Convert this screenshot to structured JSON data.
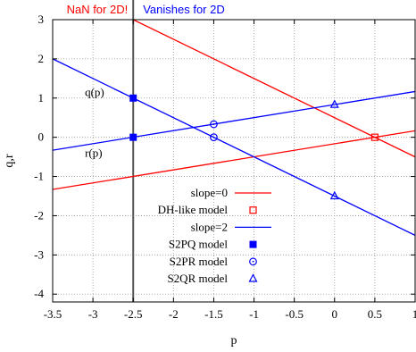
{
  "chart_data": {
    "type": "line",
    "xlabel": "p",
    "ylabel": "q,r",
    "xlim": [
      -3.5,
      1
    ],
    "ylim": [
      -4.2,
      3
    ],
    "x_ticks": [
      -3.5,
      -3,
      -2.5,
      -2,
      -1.5,
      -1,
      -0.5,
      0,
      0.5,
      1
    ],
    "x_tick_labels": [
      "-3.5",
      "-3",
      "-2.5",
      "-2",
      "-1.5",
      "-1",
      "-0.5",
      "0",
      "0.5",
      "1"
    ],
    "y_ticks": [
      -4,
      -3,
      -2,
      -1,
      0,
      1,
      2,
      3
    ],
    "y_tick_labels": [
      "-4",
      "-3",
      "-2",
      "-1",
      "0",
      "1",
      "2",
      "3"
    ],
    "grid": true,
    "vertical_line": {
      "x": -2.5,
      "color": "#555555"
    },
    "region_labels": [
      {
        "text": "NaN for 2D!",
        "color": "#ff0000"
      },
      {
        "text": "Vanishes for 2D",
        "color": "#0000ff"
      }
    ],
    "curve_labels": [
      {
        "text": "q(p)",
        "x": -3.1,
        "y": 1.05
      },
      {
        "text": "r(p)",
        "x": -3.1,
        "y": -0.5
      }
    ],
    "series": [
      {
        "name": "slope=0",
        "kind": "line",
        "color": "#ff0000",
        "x": [
          -3.5,
          1
        ],
        "y": [
          -1.33,
          0.167
        ]
      },
      {
        "name": "",
        "kind": "line",
        "color": "#ff0000",
        "x": [
          -2.5,
          1
        ],
        "y": [
          3.0,
          -0.5
        ]
      },
      {
        "name": "DH-like model",
        "kind": "points",
        "marker": "square-open",
        "color": "#ff0000",
        "x": [
          0.5
        ],
        "y": [
          0
        ]
      },
      {
        "name": "slope=2",
        "kind": "line",
        "color": "#0000ff",
        "x": [
          -3.5,
          1
        ],
        "y": [
          -0.33,
          1.167
        ]
      },
      {
        "name": "",
        "kind": "line",
        "color": "#0000ff",
        "x": [
          -3.5,
          1
        ],
        "y": [
          2.0,
          -2.5
        ]
      },
      {
        "name": "S2PQ model",
        "kind": "points",
        "marker": "square-filled",
        "color": "#0000ff",
        "x": [
          -2.5,
          -2.5
        ],
        "y": [
          1,
          0
        ]
      },
      {
        "name": "S2PR model",
        "kind": "points",
        "marker": "circle-open",
        "color": "#0000ff",
        "x": [
          -1.5,
          -1.5
        ],
        "y": [
          0.333,
          0
        ]
      },
      {
        "name": "S2QR model",
        "kind": "points",
        "marker": "triangle-open",
        "color": "#0000ff",
        "x": [
          0,
          0
        ],
        "y": [
          0.833,
          -1.5
        ]
      }
    ],
    "legend_position": "bottom-center"
  }
}
